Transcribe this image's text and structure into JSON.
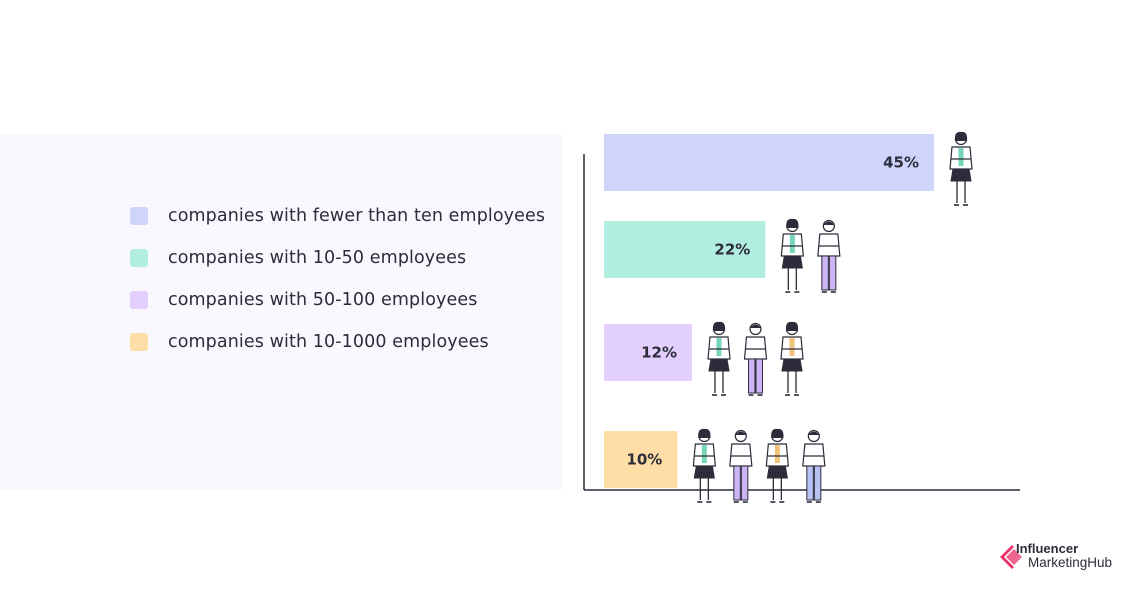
{
  "legend": {
    "items": [
      {
        "label": "companies with fewer than ten employees",
        "color": "#ced4fa"
      },
      {
        "label": "companies with 10-50 employees",
        "color": "#b2eedf"
      },
      {
        "label": "companies with 50-100 employees",
        "color": "#e3cffd"
      },
      {
        "label": "companies with 10-1000 employees",
        "color": "#fedea6"
      }
    ]
  },
  "chart_data": {
    "type": "bar",
    "orientation": "horizontal",
    "categories": [
      "companies with fewer than ten employees",
      "companies with 10-50 employees",
      "companies with 50-100 employees",
      "companies with 10-1000 employees"
    ],
    "values": [
      45,
      22,
      12,
      10
    ],
    "value_labels": [
      "45%",
      "22%",
      "12%",
      "10%"
    ],
    "colors": [
      "#ced4fa",
      "#b2eedf",
      "#e3cffd",
      "#fedea6"
    ],
    "people_counts": [
      1,
      2,
      3,
      4
    ],
    "legend_placement": "left",
    "grid": false
  },
  "branding": {
    "logo_line1": "Influencer",
    "logo_line2": "MarketingHub",
    "logo_color": "#e8336b"
  }
}
